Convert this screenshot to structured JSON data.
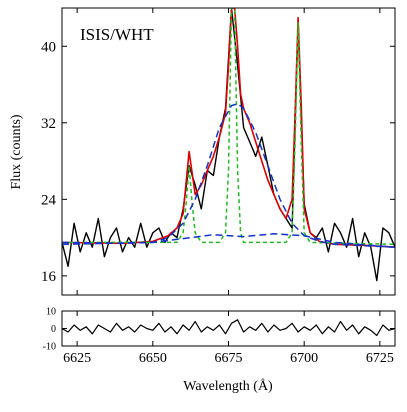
{
  "chart_data": [
    {
      "type": "line",
      "title": "",
      "annotation": "ISIS/WHT",
      "xlabel": "",
      "ylabel": "Flux (counts)",
      "xlim": [
        6620,
        6730
      ],
      "ylim": [
        14,
        44
      ],
      "yticks": [
        16,
        24,
        32,
        40
      ],
      "xticks": [
        6625,
        6650,
        6675,
        6700,
        6725
      ],
      "grid": false,
      "legend": "none",
      "series": [
        {
          "role": "observed",
          "color": "#000000",
          "x": [
            6620,
            6622,
            6624,
            6626,
            6628,
            6630,
            6632,
            6634,
            6636,
            6638,
            6640,
            6642,
            6644,
            6646,
            6648,
            6650,
            6652,
            6654,
            6656,
            6658,
            6660,
            6662,
            6664,
            6666,
            6668,
            6670,
            6672,
            6674,
            6676,
            6678,
            6680,
            6682,
            6684,
            6686,
            6688,
            6690,
            6692,
            6694,
            6696,
            6698,
            6700,
            6702,
            6704,
            6706,
            6708,
            6710,
            6712,
            6714,
            6716,
            6718,
            6720,
            6722,
            6724,
            6726,
            6728,
            6730
          ],
          "y": [
            19.5,
            17.0,
            21.5,
            18.5,
            20.5,
            19.0,
            22.0,
            18.0,
            20.0,
            21.0,
            18.5,
            20.0,
            19.0,
            21.5,
            19.0,
            20.5,
            21.0,
            19.5,
            20.5,
            20.0,
            23.0,
            27.5,
            25.5,
            23.0,
            27.0,
            26.5,
            30.5,
            33.5,
            44.0,
            38.0,
            31.5,
            30.0,
            28.5,
            30.5,
            27.5,
            24.5,
            23.0,
            22.0,
            21.0,
            42.5,
            23.5,
            20.5,
            20.0,
            21.0,
            18.5,
            21.5,
            20.5,
            19.0,
            22.0,
            18.0,
            20.5,
            19.0,
            15.5,
            21.0,
            20.5,
            19.0
          ]
        },
        {
          "role": "total model",
          "color": "#e00000",
          "x": [
            6620,
            6640,
            6650,
            6655,
            6658,
            6660,
            6662,
            6664,
            6666,
            6668,
            6670,
            6672,
            6674,
            6675,
            6676,
            6677,
            6678,
            6679,
            6680,
            6682,
            6684,
            6686,
            6688,
            6690,
            6692,
            6694,
            6696,
            6697,
            6698,
            6699,
            6700,
            6702,
            6705,
            6710,
            6720,
            6730
          ],
          "y": [
            19.5,
            19.4,
            19.6,
            20.2,
            21.0,
            22.5,
            29.0,
            24.5,
            25.5,
            27.0,
            28.5,
            30.5,
            33.0,
            38.0,
            44.0,
            44.0,
            40.0,
            35.0,
            33.5,
            32.0,
            30.0,
            28.0,
            26.0,
            24.5,
            23.0,
            22.0,
            24.0,
            33.0,
            43.0,
            34.0,
            23.0,
            20.5,
            19.6,
            19.3,
            19.2,
            19.0
          ]
        },
        {
          "role": "narrow components",
          "color": "#22bb22",
          "x": [
            6620,
            6658,
            6660,
            6661,
            6662,
            6663,
            6664,
            6666,
            6672,
            6674,
            6675,
            6676,
            6677,
            6678,
            6679,
            6680,
            6682,
            6690,
            6694,
            6696,
            6697,
            6698,
            6699,
            6700,
            6702,
            6730
          ],
          "y": [
            19.5,
            19.5,
            20.5,
            23.5,
            27.5,
            23.5,
            20.5,
            19.5,
            19.5,
            20.5,
            27.0,
            44.0,
            44.0,
            27.0,
            20.5,
            19.5,
            19.5,
            19.5,
            19.5,
            20.5,
            30.0,
            42.5,
            30.0,
            20.5,
            19.5,
            19.3
          ]
        },
        {
          "role": "broad component",
          "color": "#1133cc",
          "x": [
            6620,
            6640,
            6650,
            6655,
            6660,
            6664,
            6668,
            6672,
            6676,
            6678,
            6680,
            6684,
            6688,
            6692,
            6696,
            6700,
            6705,
            6710,
            6730
          ],
          "y": [
            19.5,
            19.4,
            19.5,
            20.0,
            21.5,
            24.0,
            27.5,
            31.5,
            33.8,
            34.0,
            33.5,
            31.0,
            27.5,
            24.0,
            21.5,
            20.2,
            19.6,
            19.3,
            19.0
          ]
        },
        {
          "role": "broad component (secondary)",
          "color": "#1133cc",
          "x": [
            6620,
            6650,
            6660,
            6670,
            6680,
            6690,
            6700,
            6710,
            6730
          ],
          "y": [
            19.3,
            19.5,
            19.9,
            20.3,
            20.1,
            20.4,
            20.2,
            19.5,
            19.0
          ]
        }
      ]
    },
    {
      "type": "line",
      "title": "",
      "xlabel": "Wavelength (Å)",
      "ylabel": "",
      "xlim": [
        6620,
        6730
      ],
      "ylim": [
        -10,
        10
      ],
      "yticks": [
        -10,
        0,
        10
      ],
      "xticks": [
        6625,
        6650,
        6675,
        6700,
        6725
      ],
      "grid": false,
      "legend": "none",
      "series": [
        {
          "role": "residuals",
          "color": "#000000",
          "x": [
            6620,
            6622,
            6624,
            6626,
            6628,
            6630,
            6632,
            6634,
            6636,
            6638,
            6640,
            6642,
            6644,
            6646,
            6648,
            6650,
            6652,
            6654,
            6656,
            6658,
            6660,
            6662,
            6664,
            6666,
            6668,
            6670,
            6672,
            6674,
            6676,
            6678,
            6680,
            6682,
            6684,
            6686,
            6688,
            6690,
            6692,
            6694,
            6696,
            6698,
            6700,
            6702,
            6704,
            6706,
            6708,
            6710,
            6712,
            6714,
            6716,
            6718,
            6720,
            6722,
            6724,
            6726,
            6728,
            6730
          ],
          "y": [
            0,
            -2,
            2,
            -1,
            1,
            -3,
            2,
            0,
            -2,
            3,
            -1,
            1,
            -2,
            2,
            0,
            -1,
            3,
            -2,
            1,
            -3,
            2,
            -1,
            4,
            -2,
            1,
            -1,
            2,
            -3,
            3,
            5,
            -2,
            1,
            -1,
            3,
            -2,
            2,
            -1,
            0,
            3,
            -2,
            1,
            -1,
            2,
            -3,
            1,
            -2,
            4,
            -1,
            2,
            -3,
            1,
            -1,
            -4,
            2,
            -1,
            0
          ]
        }
      ]
    }
  ]
}
